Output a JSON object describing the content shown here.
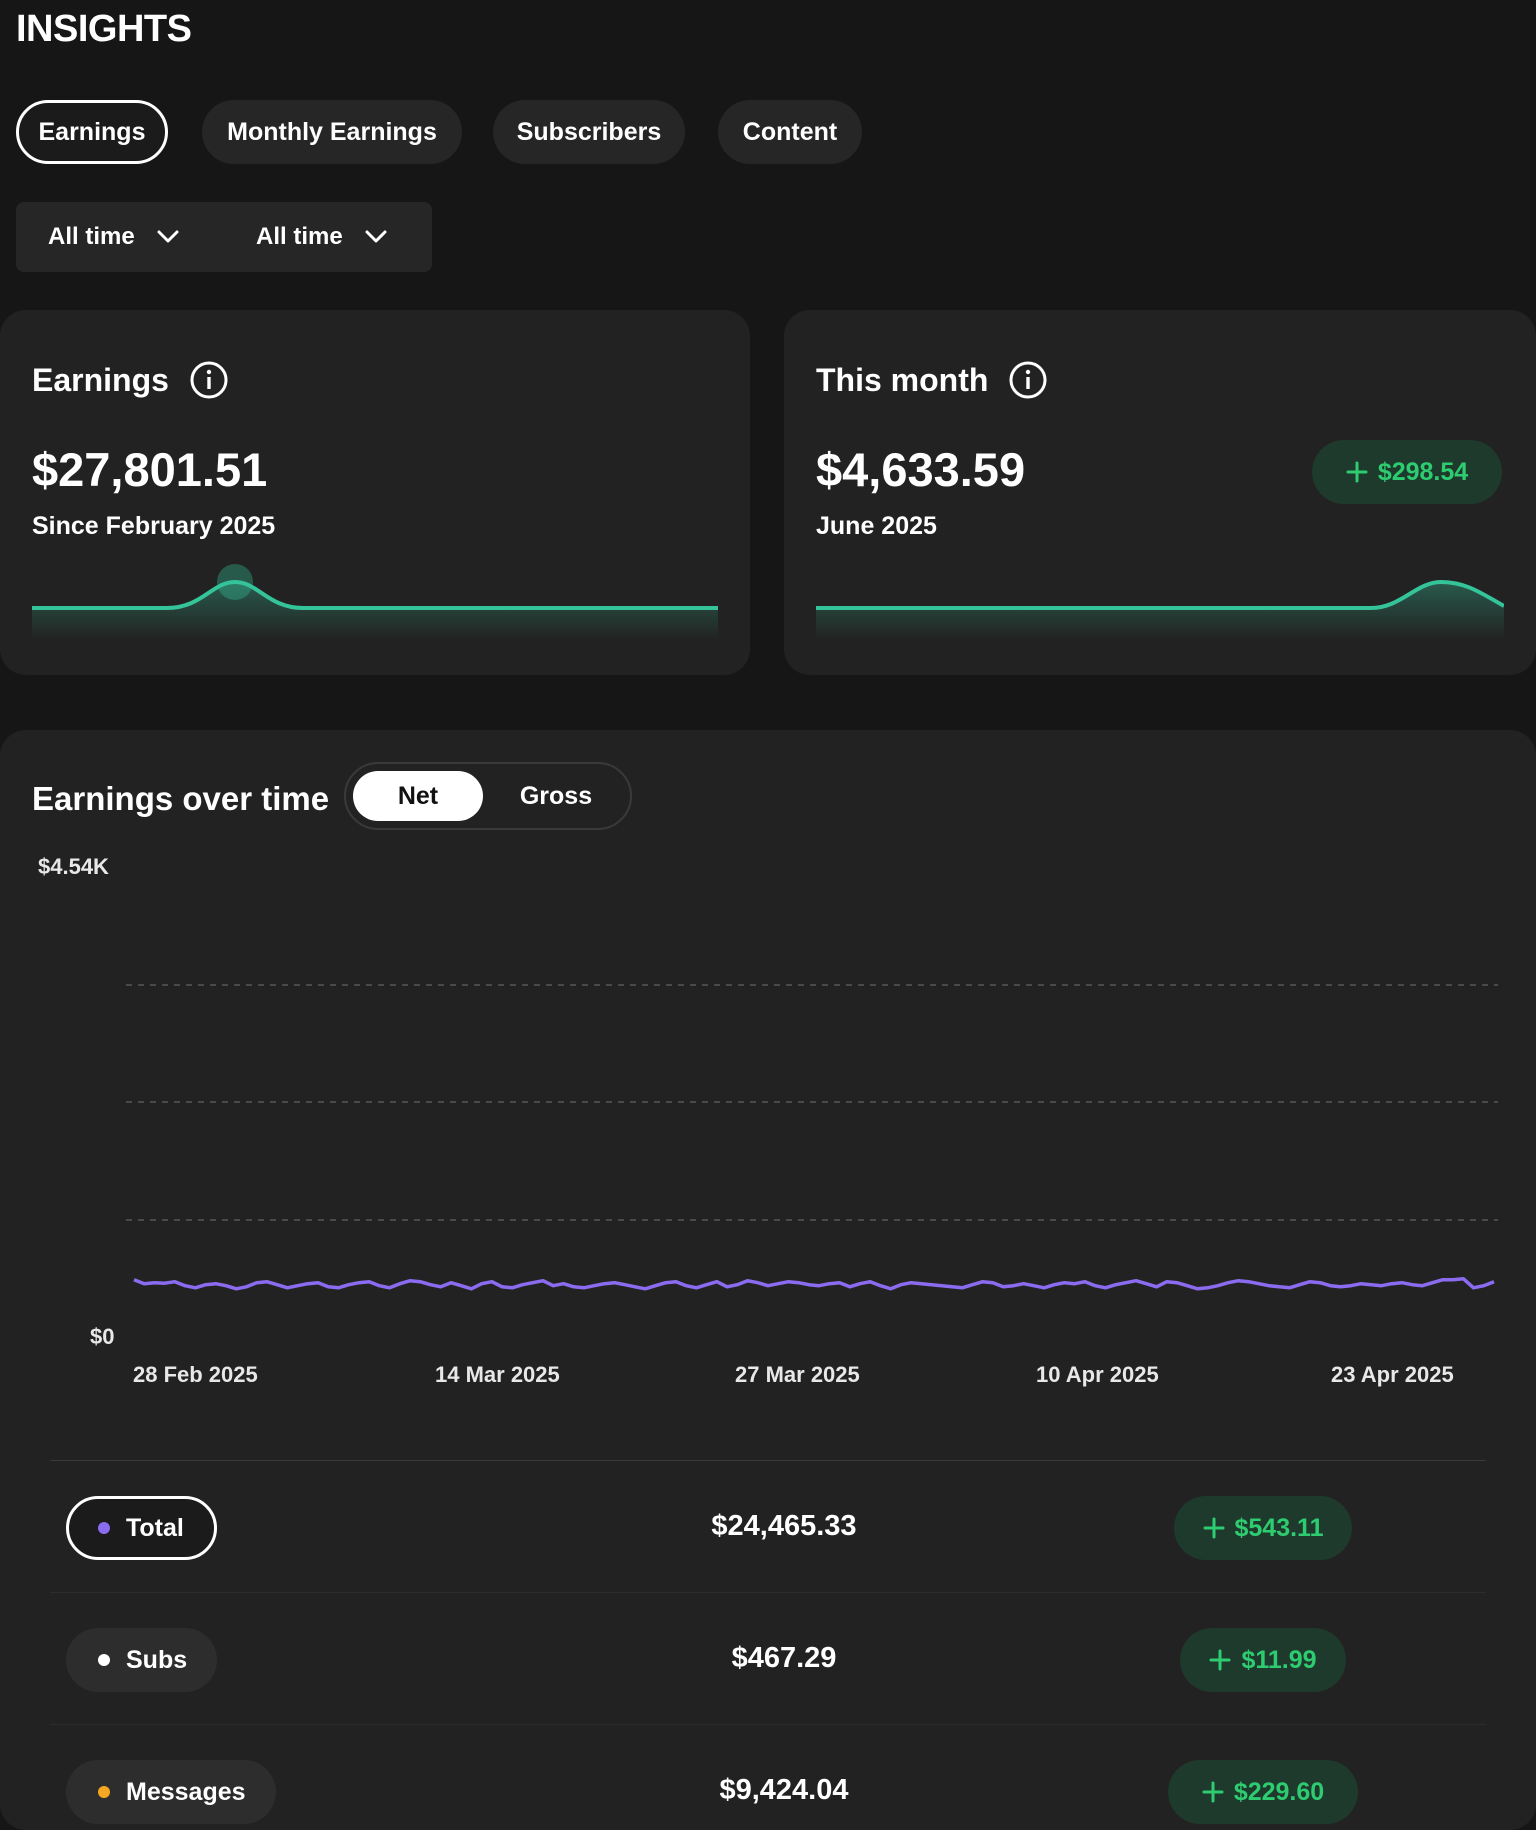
{
  "page": {
    "title": "INSIGHTS"
  },
  "tabs": [
    {
      "label": "Earnings",
      "active": true
    },
    {
      "label": "Monthly Earnings",
      "active": false
    },
    {
      "label": "Subscribers",
      "active": false
    },
    {
      "label": "Content",
      "active": false
    }
  ],
  "filters": [
    {
      "label": "All time",
      "icon": "chevron-down-icon"
    },
    {
      "label": "All time",
      "icon": "chevron-down-icon"
    }
  ],
  "earnings_card": {
    "title": "Earnings",
    "amount": "$27,801.51",
    "subtitle": "Since February 2025",
    "accent": "#35c39a"
  },
  "month_card": {
    "title": "This month",
    "amount": "$4,633.59",
    "subtitle": "June 2025",
    "delta": "$298.54",
    "accent": "#35c39a"
  },
  "chart_section": {
    "title": "Earnings over time",
    "toggle": [
      {
        "label": "Net",
        "selected": true
      },
      {
        "label": "Gross",
        "selected": false
      }
    ]
  },
  "chart_data": {
    "type": "line",
    "ylabel_top": "$4.54K",
    "ylabel_bottom": "$0",
    "ylim": [
      0,
      4540
    ],
    "grid": "dashed",
    "x_ticks": [
      "28 Feb 2025",
      "14 Mar 2025",
      "27 Mar 2025",
      "10 Apr 2025",
      "23 Apr 2025"
    ],
    "series": [
      {
        "color": "#8b6cf0",
        "values": [
          440,
          400,
          410,
          405,
          420,
          380,
          360,
          390,
          400,
          380,
          350,
          370,
          410,
          420,
          390,
          360,
          380,
          400,
          410,
          370,
          360,
          390,
          410,
          420,
          380,
          360,
          400,
          430,
          420,
          390,
          370,
          410,
          380,
          350,
          400,
          420,
          370,
          360,
          390,
          410,
          430,
          380,
          400,
          370,
          360,
          380,
          400,
          410,
          390,
          370,
          350,
          380,
          410,
          420,
          380,
          360,
          390,
          420,
          370,
          390,
          430,
          410,
          380,
          400,
          420,
          410,
          390,
          380,
          400,
          410,
          370,
          400,
          420,
          380,
          350,
          390,
          410,
          400,
          390,
          380,
          370,
          360,
          390,
          420,
          410,
          370,
          380,
          400,
          380,
          360,
          390,
          410,
          400,
          420,
          380,
          360,
          390,
          410,
          430,
          400,
          370,
          420,
          410,
          380,
          350,
          360,
          380,
          410,
          430,
          420,
          400,
          380,
          370,
          360,
          390,
          420,
          410,
          380,
          370,
          380,
          400,
          390,
          380,
          400,
          410,
          390,
          380,
          410,
          440,
          440,
          450,
          360,
          380,
          420
        ]
      }
    ]
  },
  "rows": [
    {
      "label": "Total",
      "dot": "#8b6cf0",
      "value": "$24,465.33",
      "delta": "$543.11",
      "active": true
    },
    {
      "label": "Subs",
      "dot": "#ffffff",
      "value": "$467.29",
      "delta": "$11.99",
      "active": false
    },
    {
      "label": "Messages",
      "dot": "#f5a623",
      "value": "$9,424.04",
      "delta": "$229.60",
      "active": false
    }
  ]
}
